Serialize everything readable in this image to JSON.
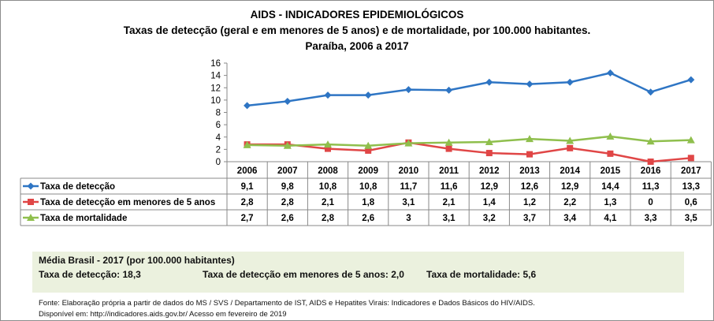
{
  "chart_data": {
    "type": "line",
    "title": "AIDS - INDICADORES EPIDEMIOLÓGICOS",
    "subtitle": "Taxas de detecção (geral e em menores de 5 anos) e de mortalidade, por 100.000 habitantes.",
    "subtitle2": "Paraíba, 2006 a 2017",
    "categories": [
      "2006",
      "2007",
      "2008",
      "2009",
      "2010",
      "2011",
      "2012",
      "2013",
      "2014",
      "2015",
      "2016",
      "2017"
    ],
    "ylim": [
      0,
      16
    ],
    "yticks": [
      0,
      2,
      4,
      6,
      8,
      10,
      12,
      14,
      16
    ],
    "grid": false,
    "legend": "data-table",
    "series": [
      {
        "name": "Taxa de detecção",
        "color": "#2e75c4",
        "marker": "diamond",
        "values": [
          9.1,
          9.8,
          10.8,
          10.8,
          11.7,
          11.6,
          12.9,
          12.6,
          12.9,
          14.4,
          11.3,
          13.3
        ],
        "labels": [
          "9,1",
          "9,8",
          "10,8",
          "10,8",
          "11,7",
          "11,6",
          "12,9",
          "12,6",
          "12,9",
          "14,4",
          "11,3",
          "13,3"
        ]
      },
      {
        "name": "Taxa de detecção em menores de 5 anos",
        "color": "#e04646",
        "marker": "square",
        "values": [
          2.8,
          2.8,
          2.1,
          1.8,
          3.1,
          2.1,
          1.4,
          1.2,
          2.2,
          1.3,
          0,
          0.6
        ],
        "labels": [
          "2,8",
          "2,8",
          "2,1",
          "1,8",
          "3,1",
          "2,1",
          "1,4",
          "1,2",
          "2,2",
          "1,3",
          "0",
          "0,6"
        ]
      },
      {
        "name": "Taxa de mortalidade",
        "color": "#8fbf4d",
        "marker": "triangle",
        "values": [
          2.7,
          2.6,
          2.8,
          2.6,
          3,
          3.1,
          3.2,
          3.7,
          3.4,
          4.1,
          3.3,
          3.5
        ],
        "labels": [
          "2,7",
          "2,6",
          "2,8",
          "2,6",
          "3",
          "3,1",
          "3,2",
          "3,7",
          "3,4",
          "4,1",
          "3,3",
          "3,5"
        ]
      }
    ]
  },
  "summary": {
    "heading": "Média Brasil - 2017  (por 100.000 habitantes)",
    "items": [
      "Taxa de detecção: 18,3",
      "Taxa de detecção em menores de 5 anos: 2,0",
      "Taxa de mortalidade: 5,6"
    ],
    "background": "#ebf1de"
  },
  "source": {
    "line1": "Fonte: Elaboração própria a partir de dados do MS / SVS / Departamento de IST, AIDS e Hepatites Virais: Indicadores e Dados Básicos do HIV/AIDS.",
    "line2": "Disponível em: http://indicadores.aids.gov.br/   Acesso em fevereiro de 2019"
  }
}
